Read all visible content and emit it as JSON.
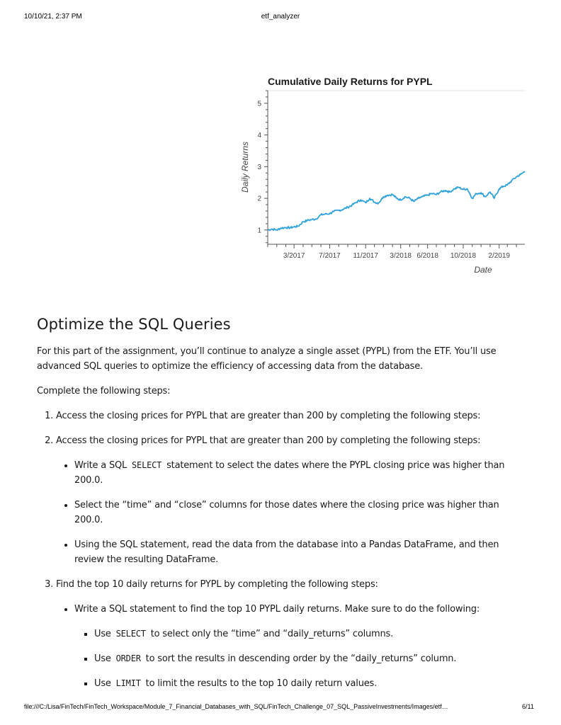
{
  "header": {
    "datetime": "10/10/21, 2:37 PM",
    "title": "etf_analyzer"
  },
  "footer": {
    "path": "file:///C:/Lisa/FinTech/FinTech_Workspace/Module_7_Financial_Databases_with_SQL/FinTech_Challenge_07_SQL_PassiveInvestments/Images/etf…",
    "page": "6/11"
  },
  "chart_data": {
    "type": "line",
    "title": "Cumulative Daily Returns for PYPL",
    "xlabel": "Date",
    "ylabel": "Daily Returns",
    "x_tick_labels": [
      "3/2017",
      "7/2017",
      "11/2017",
      "3/2018",
      "6/2018",
      "10/2018",
      "2/2019"
    ],
    "y_ticks": [
      1,
      2,
      3,
      4,
      5
    ],
    "xlim": [
      "2016-12-01",
      "2019-04-30"
    ],
    "ylim": [
      0.55,
      5.4
    ],
    "grid": false,
    "color": "#30a2da",
    "series": [
      {
        "x": [
          "2016-12-01",
          "2016-12-15",
          "2017-01-01",
          "2017-01-15",
          "2017-02-01",
          "2017-02-15",
          "2017-03-01",
          "2017-03-15",
          "2017-04-01",
          "2017-04-15",
          "2017-05-01",
          "2017-05-15",
          "2017-06-01",
          "2017-06-15",
          "2017-07-01",
          "2017-07-15",
          "2017-08-01",
          "2017-08-15",
          "2017-09-01",
          "2017-09-15",
          "2017-10-01",
          "2017-10-15",
          "2017-11-01",
          "2017-11-15",
          "2017-12-01",
          "2017-12-15",
          "2018-01-01",
          "2018-01-15",
          "2018-02-01",
          "2018-02-15",
          "2018-03-01",
          "2018-03-15",
          "2018-04-01",
          "2018-04-15",
          "2018-05-01",
          "2018-05-15",
          "2018-06-01",
          "2018-06-15",
          "2018-07-01",
          "2018-07-15",
          "2018-08-01",
          "2018-08-15",
          "2018-09-01",
          "2018-09-15",
          "2018-10-01",
          "2018-10-15",
          "2018-11-01",
          "2018-11-15",
          "2018-12-01",
          "2018-12-15",
          "2019-01-01",
          "2019-01-15",
          "2019-02-01",
          "2019-02-15",
          "2019-03-01",
          "2019-03-15",
          "2019-04-01",
          "2019-04-15",
          "2019-04-30"
        ],
        "values": [
          1.0,
          1.03,
          1.0,
          1.06,
          1.08,
          1.07,
          1.1,
          1.12,
          1.26,
          1.3,
          1.33,
          1.35,
          1.48,
          1.5,
          1.52,
          1.58,
          1.62,
          1.65,
          1.72,
          1.78,
          1.88,
          1.95,
          1.86,
          2.0,
          1.88,
          1.85,
          2.05,
          2.1,
          2.12,
          2.0,
          1.95,
          2.05,
          2.0,
          1.9,
          2.0,
          2.05,
          2.1,
          2.15,
          2.12,
          2.2,
          2.25,
          2.2,
          2.3,
          2.35,
          2.28,
          2.3,
          2.0,
          2.15,
          2.18,
          2.05,
          2.2,
          2.0,
          2.3,
          2.38,
          2.42,
          2.55,
          2.68,
          2.75,
          2.85
        ]
      }
    ]
  },
  "section": {
    "heading": "Optimize the SQL Queries",
    "intro": "For this part of the assignment, you’ll continue to analyze a single asset (PYPL) from the ETF. You’ll use advanced SQL queries to optimize the efficiency of accessing data from the database.",
    "steps_intro": "Complete the following steps:",
    "step1": "Access the closing prices for PYPL that are greater than 200 by completing the following steps:",
    "step2": "Access the closing prices for PYPL that are greater than 200 by completing the following steps:",
    "step2_a_before": "Write a SQL ",
    "step2_a_code": "SELECT",
    "step2_a_after": " statement to select the dates where the PYPL closing price was higher than 200.0.",
    "step2_b": "Select the “time” and “close” columns for those dates where the closing price was higher than 200.0.",
    "step2_c": "Using the SQL statement, read the data from the database into a Pandas DataFrame, and then review the resulting DataFrame.",
    "step3": "Find the top 10 daily returns for PYPL by completing the following steps:",
    "step3_a": "Write a SQL statement to find the top 10 PYPL daily returns. Make sure to do the following:",
    "step3_a1_before": "Use ",
    "step3_a1_code": "SELECT",
    "step3_a1_after": " to select only the “time” and “daily_returns” columns.",
    "step3_a2_before": "Use ",
    "step3_a2_code": "ORDER",
    "step3_a2_after": " to sort the results in descending order by the “daily_returns” column.",
    "step3_a3_before": "Use ",
    "step3_a3_code": "LIMIT",
    "step3_a3_after": " to limit the results to the top 10 daily return values."
  }
}
